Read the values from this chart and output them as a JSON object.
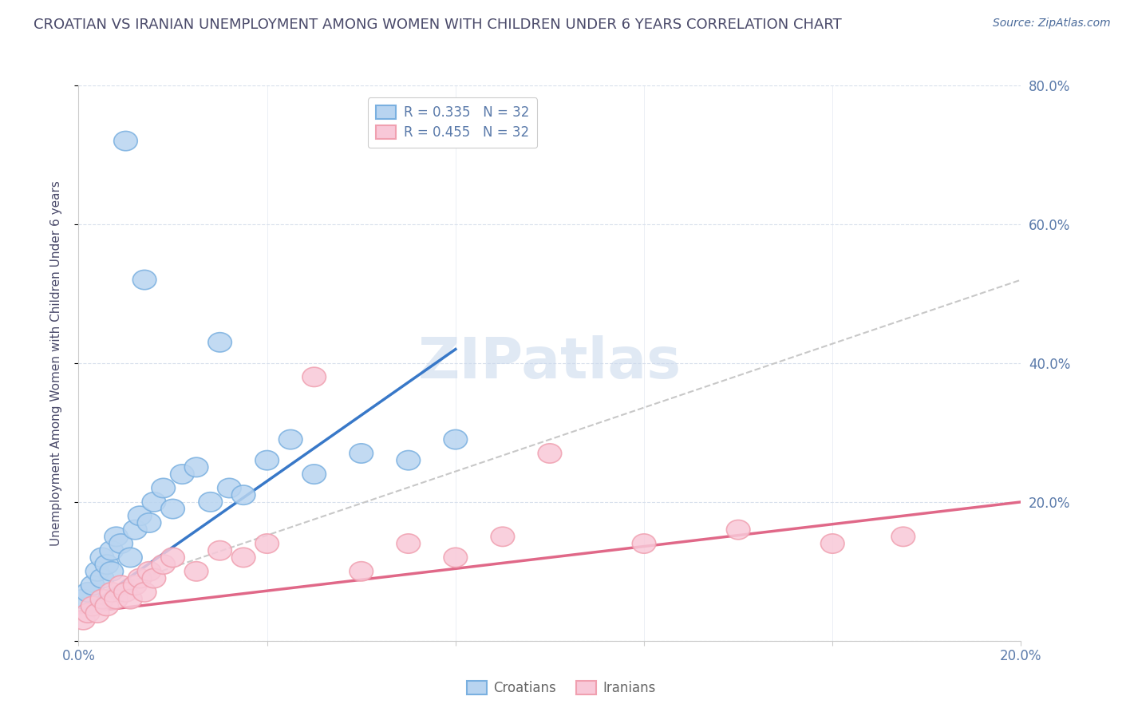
{
  "title": "CROATIAN VS IRANIAN UNEMPLOYMENT AMONG WOMEN WITH CHILDREN UNDER 6 YEARS CORRELATION CHART",
  "source": "Source: ZipAtlas.com",
  "ylabel": "Unemployment Among Women with Children Under 6 years",
  "xlim": [
    0.0,
    0.2
  ],
  "ylim": [
    0.0,
    0.8
  ],
  "yticks": [
    0.0,
    0.2,
    0.4,
    0.6,
    0.8
  ],
  "xticks": [
    0.0,
    0.04,
    0.08,
    0.12,
    0.16,
    0.2
  ],
  "title_color": "#4a4a6a",
  "source_color": "#4a6a9a",
  "axis_color": "#5a7aaa",
  "watermark_text": "ZIPatlas",
  "blue_scatter_x": [
    0.001,
    0.002,
    0.003,
    0.004,
    0.005,
    0.005,
    0.006,
    0.007,
    0.007,
    0.008,
    0.009,
    0.01,
    0.011,
    0.012,
    0.013,
    0.014,
    0.015,
    0.016,
    0.018,
    0.02,
    0.022,
    0.025,
    0.028,
    0.03,
    0.032,
    0.035,
    0.04,
    0.045,
    0.05,
    0.06,
    0.07,
    0.08
  ],
  "blue_scatter_y": [
    0.06,
    0.07,
    0.08,
    0.1,
    0.09,
    0.12,
    0.11,
    0.13,
    0.1,
    0.15,
    0.14,
    0.72,
    0.12,
    0.16,
    0.18,
    0.52,
    0.17,
    0.2,
    0.22,
    0.19,
    0.24,
    0.25,
    0.2,
    0.43,
    0.22,
    0.21,
    0.26,
    0.29,
    0.24,
    0.27,
    0.26,
    0.29
  ],
  "pink_scatter_x": [
    0.001,
    0.002,
    0.003,
    0.004,
    0.005,
    0.006,
    0.007,
    0.008,
    0.009,
    0.01,
    0.011,
    0.012,
    0.013,
    0.014,
    0.015,
    0.016,
    0.018,
    0.02,
    0.025,
    0.03,
    0.035,
    0.04,
    0.05,
    0.06,
    0.07,
    0.08,
    0.09,
    0.1,
    0.12,
    0.14,
    0.16,
    0.175
  ],
  "pink_scatter_y": [
    0.03,
    0.04,
    0.05,
    0.04,
    0.06,
    0.05,
    0.07,
    0.06,
    0.08,
    0.07,
    0.06,
    0.08,
    0.09,
    0.07,
    0.1,
    0.09,
    0.11,
    0.12,
    0.1,
    0.13,
    0.12,
    0.14,
    0.38,
    0.1,
    0.14,
    0.12,
    0.15,
    0.27,
    0.14,
    0.16,
    0.14,
    0.15
  ],
  "blue_line_x": [
    0.0,
    0.08
  ],
  "blue_line_y": [
    0.04,
    0.42
  ],
  "pink_line_x": [
    0.0,
    0.2
  ],
  "pink_line_y": [
    0.04,
    0.2
  ],
  "gray_line_x": [
    0.0,
    0.2
  ],
  "gray_line_y": [
    0.06,
    0.52
  ],
  "blue_color": "#7ab0e0",
  "pink_color": "#f0a0b0",
  "blue_fill": "#b8d4f0",
  "pink_fill": "#f8c8d8",
  "gray_line_color": "#c8c8c8",
  "blue_line_color": "#3878c8",
  "pink_line_color": "#e06888",
  "grid_color": "#d8e0ec",
  "background_color": "#ffffff"
}
